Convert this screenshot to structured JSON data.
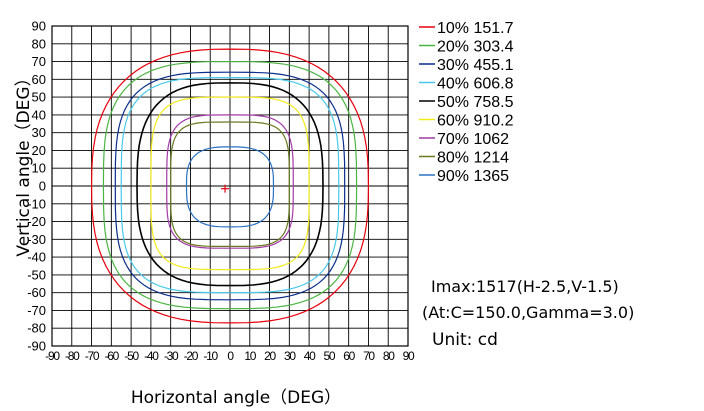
{
  "chart_data": {
    "type": "polar-contour",
    "xlabel": "Horizontal angle（DEG）",
    "ylabel": "Vertical angle（DEG）",
    "xlim": [
      -90,
      90
    ],
    "ylim": [
      -90,
      90
    ],
    "x_ticks": [
      -90,
      -80,
      -70,
      -60,
      -50,
      -40,
      -30,
      -20,
      -10,
      0,
      10,
      20,
      30,
      40,
      50,
      60,
      70,
      80,
      90
    ],
    "y_ticks": [
      90,
      80,
      70,
      60,
      50,
      40,
      30,
      20,
      10,
      0,
      -10,
      -20,
      -30,
      -40,
      -50,
      -60,
      -70,
      -80,
      -90
    ],
    "grid": true,
    "legend_position": "right",
    "series": [
      {
        "label": "10% 151.7",
        "color": "#e8000b",
        "extent": {
          "left": -70,
          "right": 70,
          "top": 77,
          "bottom": -77
        }
      },
      {
        "label": "20% 303.4",
        "color": "#4bb543",
        "extent": {
          "left": -64,
          "right": 64,
          "top": 70,
          "bottom": -69
        }
      },
      {
        "label": "30% 455.1",
        "color": "#0b2e8c",
        "extent": {
          "left": -58,
          "right": 58,
          "top": 64,
          "bottom": -64
        }
      },
      {
        "label": "40% 606.8",
        "color": "#48c9ec",
        "extent": {
          "left": -55,
          "right": 55,
          "top": 61,
          "bottom": -60
        }
      },
      {
        "label": "50% 758.5",
        "color": "#000000",
        "extent": {
          "left": -47,
          "right": 47,
          "top": 58,
          "bottom": -56
        }
      },
      {
        "label": "60% 910.2",
        "color": "#f2ea1b",
        "extent": {
          "left": -40,
          "right": 40,
          "top": 50,
          "bottom": -47
        }
      },
      {
        "label": "70% 1062",
        "color": "#a23aa6",
        "extent": {
          "left": -32,
          "right": 32,
          "top": 40,
          "bottom": -35
        }
      },
      {
        "label": "80% 1214",
        "color": "#6a7a1f",
        "extent": {
          "left": -30,
          "right": 30,
          "top": 36,
          "bottom": -34
        }
      },
      {
        "label": "90% 1365",
        "color": "#2a72c3",
        "extent": {
          "left": -22,
          "right": 22,
          "top": 22,
          "bottom": -23
        }
      }
    ],
    "max_marker": {
      "h": -2.5,
      "v": -1.5,
      "color": "#e8000b"
    }
  },
  "info": {
    "imax": "Imax:1517(H-2.5,V-1.5)",
    "at": "(At:C=150.0,Gamma=3.0)",
    "unit": "Unit: cd"
  }
}
